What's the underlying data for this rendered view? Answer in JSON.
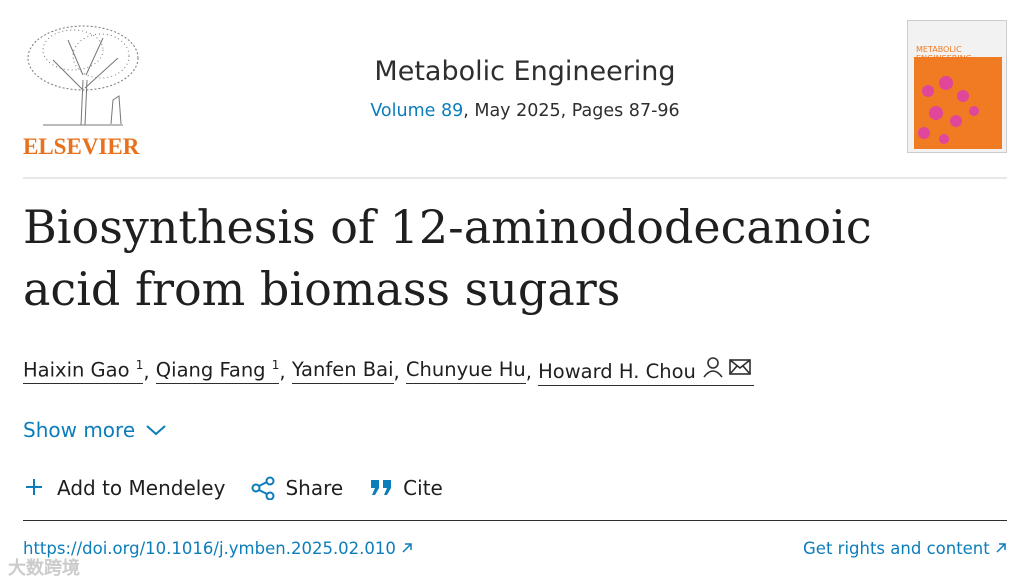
{
  "header": {
    "publisher_logo": "ELSEVIER",
    "journal": "Metabolic Engineering",
    "volume": "Volume 89",
    "issue_details": ", May 2025, Pages 87-96",
    "cover_title": "METABOLIC ENGINEERING"
  },
  "article": {
    "title": "Biosynthesis of 12-aminododecanoic acid from biomass sugars",
    "author_separator": ", ",
    "authors": [
      {
        "name": "Haixin Gao",
        "note": "1"
      },
      {
        "name": "Qiang Fang",
        "note": "1"
      },
      {
        "name": "Yanfen Bai"
      },
      {
        "name": "Chunyue Hu"
      },
      {
        "name": "Howard H. Chou"
      }
    ],
    "show_more": "Show more"
  },
  "actions": [
    "Add to Mendeley",
    "Share",
    "Cite"
  ],
  "footer": {
    "doi": "https://doi.org/10.1016/j.ymben.2025.02.010",
    "rights": "Get rights and content",
    "watermark": "大数跨境"
  }
}
